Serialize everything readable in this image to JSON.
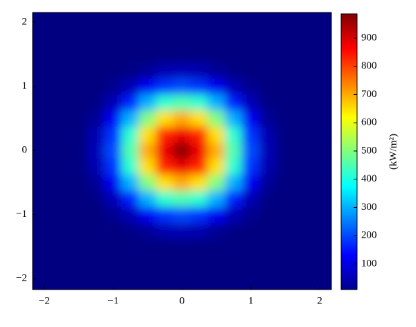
{
  "chart_data": {
    "type": "heatmap",
    "x": [
      -2,
      -1.75,
      -1.5,
      -1.25,
      -1,
      -0.75,
      -0.5,
      -0.25,
      0,
      0.25,
      0.5,
      0.75,
      1,
      1.25,
      1.5,
      1.75,
      2
    ],
    "y": [
      -2,
      -1.75,
      -1.5,
      -1.25,
      -1,
      -0.75,
      -0.5,
      -0.25,
      0,
      0.25,
      0.5,
      0.75,
      1,
      1.25,
      1.5,
      1.75,
      2
    ],
    "z": [
      [
        5,
        5,
        5,
        5,
        5,
        5,
        5,
        5,
        5,
        5,
        5,
        5,
        5,
        5,
        5,
        5,
        5
      ],
      [
        5,
        5,
        5,
        5,
        5,
        5,
        5,
        5,
        5,
        5,
        5,
        5,
        5,
        5,
        5,
        5,
        5
      ],
      [
        5,
        5,
        5,
        5,
        5,
        5,
        5,
        5,
        10,
        10,
        10,
        5,
        5,
        5,
        5,
        5,
        5
      ],
      [
        5,
        5,
        5,
        5,
        5,
        15,
        30,
        55,
        60,
        55,
        30,
        15,
        5,
        5,
        5,
        5,
        5
      ],
      [
        5,
        5,
        5,
        5,
        25,
        60,
        120,
        180,
        200,
        180,
        120,
        60,
        25,
        5,
        5,
        5,
        5
      ],
      [
        5,
        5,
        5,
        15,
        60,
        160,
        300,
        420,
        450,
        420,
        300,
        160,
        60,
        15,
        5,
        5,
        5
      ],
      [
        5,
        5,
        5,
        30,
        120,
        300,
        500,
        650,
        700,
        650,
        500,
        300,
        120,
        30,
        5,
        5,
        5
      ],
      [
        5,
        5,
        10,
        55,
        180,
        420,
        650,
        830,
        880,
        830,
        650,
        420,
        180,
        55,
        10,
        5,
        5
      ],
      [
        5,
        5,
        10,
        60,
        200,
        450,
        700,
        880,
        980,
        880,
        700,
        450,
        200,
        60,
        10,
        5,
        5
      ],
      [
        5,
        5,
        10,
        55,
        180,
        420,
        650,
        830,
        880,
        830,
        650,
        420,
        180,
        55,
        10,
        5,
        5
      ],
      [
        5,
        5,
        5,
        30,
        120,
        300,
        500,
        650,
        700,
        650,
        500,
        300,
        120,
        30,
        5,
        5,
        5
      ],
      [
        5,
        5,
        5,
        15,
        60,
        160,
        300,
        420,
        450,
        420,
        300,
        160,
        60,
        15,
        5,
        5,
        5
      ],
      [
        5,
        5,
        5,
        5,
        25,
        60,
        120,
        180,
        200,
        180,
        120,
        60,
        25,
        5,
        5,
        5,
        5
      ],
      [
        5,
        5,
        5,
        5,
        5,
        15,
        30,
        55,
        60,
        55,
        30,
        15,
        5,
        5,
        5,
        5,
        5
      ],
      [
        5,
        5,
        5,
        5,
        5,
        5,
        5,
        5,
        10,
        10,
        10,
        5,
        5,
        5,
        5,
        5,
        5
      ],
      [
        5,
        5,
        5,
        5,
        5,
        5,
        5,
        5,
        5,
        5,
        5,
        5,
        5,
        5,
        5,
        5,
        5
      ],
      [
        5,
        5,
        5,
        5,
        5,
        5,
        5,
        5,
        5,
        5,
        5,
        5,
        5,
        5,
        5,
        5,
        5
      ]
    ],
    "xlim": [
      -2.17,
      2.17
    ],
    "ylim": [
      -2.17,
      2.15
    ],
    "xticks": [
      {
        "value": -2,
        "label": "−2"
      },
      {
        "value": -1,
        "label": "−1"
      },
      0,
      1,
      2
    ],
    "yticks": [
      {
        "value": -2,
        "label": "−2"
      },
      {
        "value": -1,
        "label": "−1"
      },
      0,
      1,
      2
    ],
    "colormap": "jet",
    "clim": [
      9,
      986
    ],
    "colorbar_ticks": [
      100,
      200,
      300,
      400,
      500,
      600,
      700,
      800,
      900
    ],
    "colorbar_label": "(kW/m²)"
  }
}
